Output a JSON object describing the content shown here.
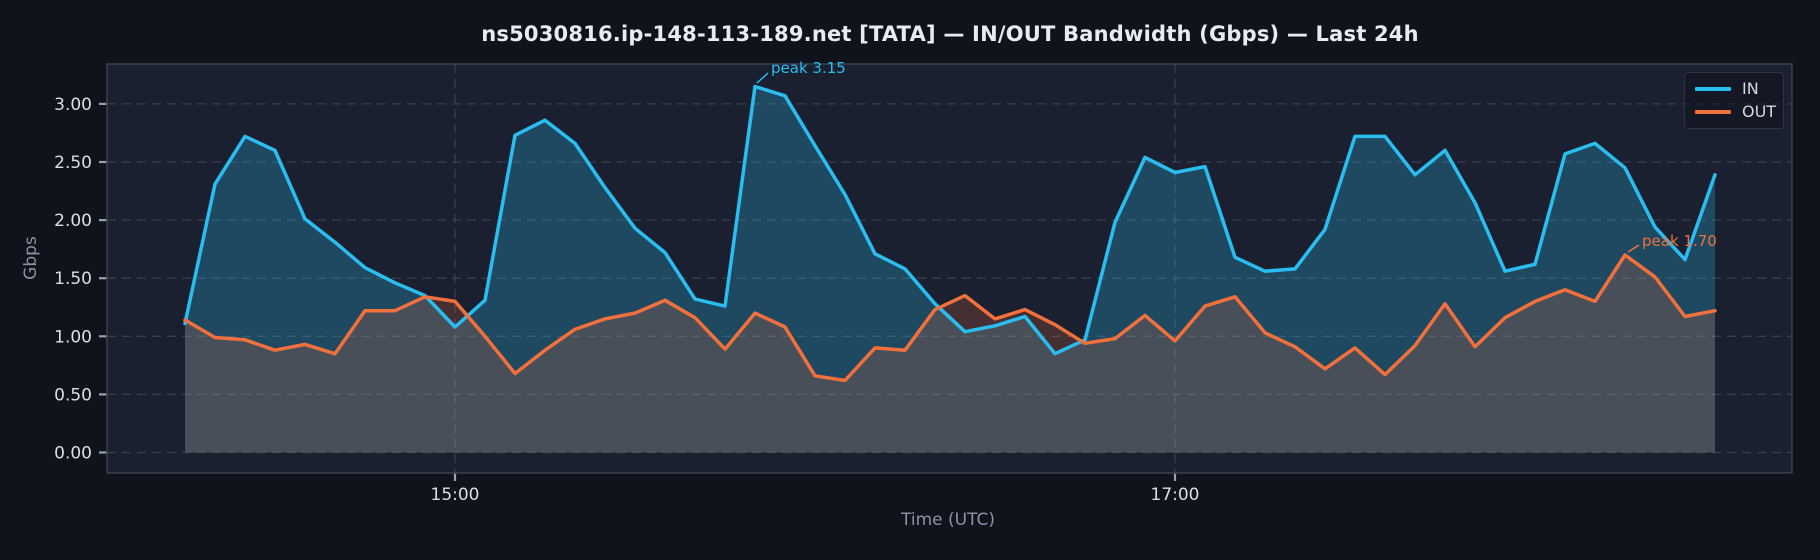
{
  "title": "ns5030816.ip-148-113-189.net [TATA] — IN/OUT Bandwidth (Gbps) — Last 24h",
  "colors": {
    "page_bg": "#10131c",
    "plot_bg": "#1b2030",
    "grid": "#3e4456",
    "spine": "#39404e",
    "tick_text": "#dcdfe6",
    "muted_text": "#8d92a6",
    "in_line": "#29bdf0",
    "out_line": "#f2703c",
    "in_fill": "rgba(41,189,240,0.26)",
    "out_fill": "rgba(242,112,60,0.20)"
  },
  "axes": {
    "y_label": "Gbps",
    "x_label": "Time (UTC)",
    "y_ticks": [
      "0.00",
      "0.50",
      "1.00",
      "1.50",
      "2.00",
      "2.50",
      "3.00"
    ],
    "x_ticks": [
      "15:00",
      "17:00"
    ]
  },
  "legend": {
    "items": [
      {
        "label": "IN"
      },
      {
        "label": "OUT"
      }
    ]
  },
  "annotations": {
    "in_peak": "peak 3.15",
    "out_peak": "peak 1.70"
  },
  "chart_data": {
    "type": "area",
    "title": "ns5030816.ip-148-113-189.net [TATA] — IN/OUT Bandwidth (Gbps) — Last 24h",
    "xlabel": "Time (UTC)",
    "ylabel": "Gbps",
    "ylim": [
      0,
      3.35
    ],
    "grid": true,
    "grid_style": "dashed",
    "legend_position": "top-right",
    "x_tick_labels": [
      "15:00",
      "17:00"
    ],
    "x": [
      "14:15",
      "14:20",
      "14:25",
      "14:30",
      "14:35",
      "14:40",
      "14:45",
      "14:50",
      "14:55",
      "15:00",
      "15:05",
      "15:10",
      "15:15",
      "15:20",
      "15:25",
      "15:30",
      "15:35",
      "15:40",
      "15:45",
      "15:50",
      "15:55",
      "16:00",
      "16:05",
      "16:10",
      "16:15",
      "16:20",
      "16:25",
      "16:30",
      "16:35",
      "16:40",
      "16:45",
      "16:50",
      "16:55",
      "17:00",
      "17:05",
      "17:10",
      "17:15",
      "17:20",
      "17:25",
      "17:30",
      "17:35",
      "17:40",
      "17:45",
      "17:50",
      "17:55",
      "18:00",
      "18:05",
      "18:10",
      "18:15",
      "18:20",
      "18:25",
      "18:30"
    ],
    "series": [
      {
        "name": "IN",
        "color": "#29bdf0",
        "fill": "rgba(41,189,240,0.26)",
        "values": [
          1.11,
          2.31,
          2.72,
          2.6,
          2.01,
          1.81,
          1.59,
          1.46,
          1.35,
          1.08,
          1.31,
          2.73,
          2.86,
          2.66,
          2.28,
          1.93,
          1.72,
          1.32,
          1.26,
          3.15,
          3.07,
          2.64,
          2.22,
          1.71,
          1.58,
          1.28,
          1.04,
          1.09,
          1.17,
          0.85,
          0.97,
          1.98,
          2.54,
          2.41,
          2.46,
          1.68,
          1.56,
          1.58,
          1.92,
          2.72,
          2.72,
          2.39,
          2.6,
          2.15,
          1.56,
          1.62,
          2.57,
          2.66,
          2.45,
          1.94,
          1.66,
          2.39
        ]
      },
      {
        "name": "OUT",
        "color": "#f2703c",
        "fill": "rgba(242,112,60,0.20)",
        "values": [
          1.14,
          0.99,
          0.97,
          0.88,
          0.93,
          0.85,
          1.22,
          1.22,
          1.34,
          1.3,
          1.0,
          0.68,
          0.88,
          1.06,
          1.15,
          1.2,
          1.31,
          1.16,
          0.89,
          1.2,
          1.08,
          0.66,
          0.62,
          0.9,
          0.88,
          1.23,
          1.35,
          1.15,
          1.23,
          1.1,
          0.94,
          0.98,
          1.18,
          0.96,
          1.26,
          1.34,
          1.03,
          0.91,
          0.72,
          0.9,
          0.67,
          0.92,
          1.28,
          0.91,
          1.16,
          1.3,
          1.4,
          1.3,
          1.7,
          1.51,
          1.17,
          1.22
        ]
      }
    ],
    "annotations": [
      {
        "series": "IN",
        "label": "peak 3.15",
        "x": "15:50",
        "y": 3.15
      },
      {
        "series": "OUT",
        "label": "peak 1.70",
        "x": "18:15",
        "y": 1.7
      }
    ]
  }
}
